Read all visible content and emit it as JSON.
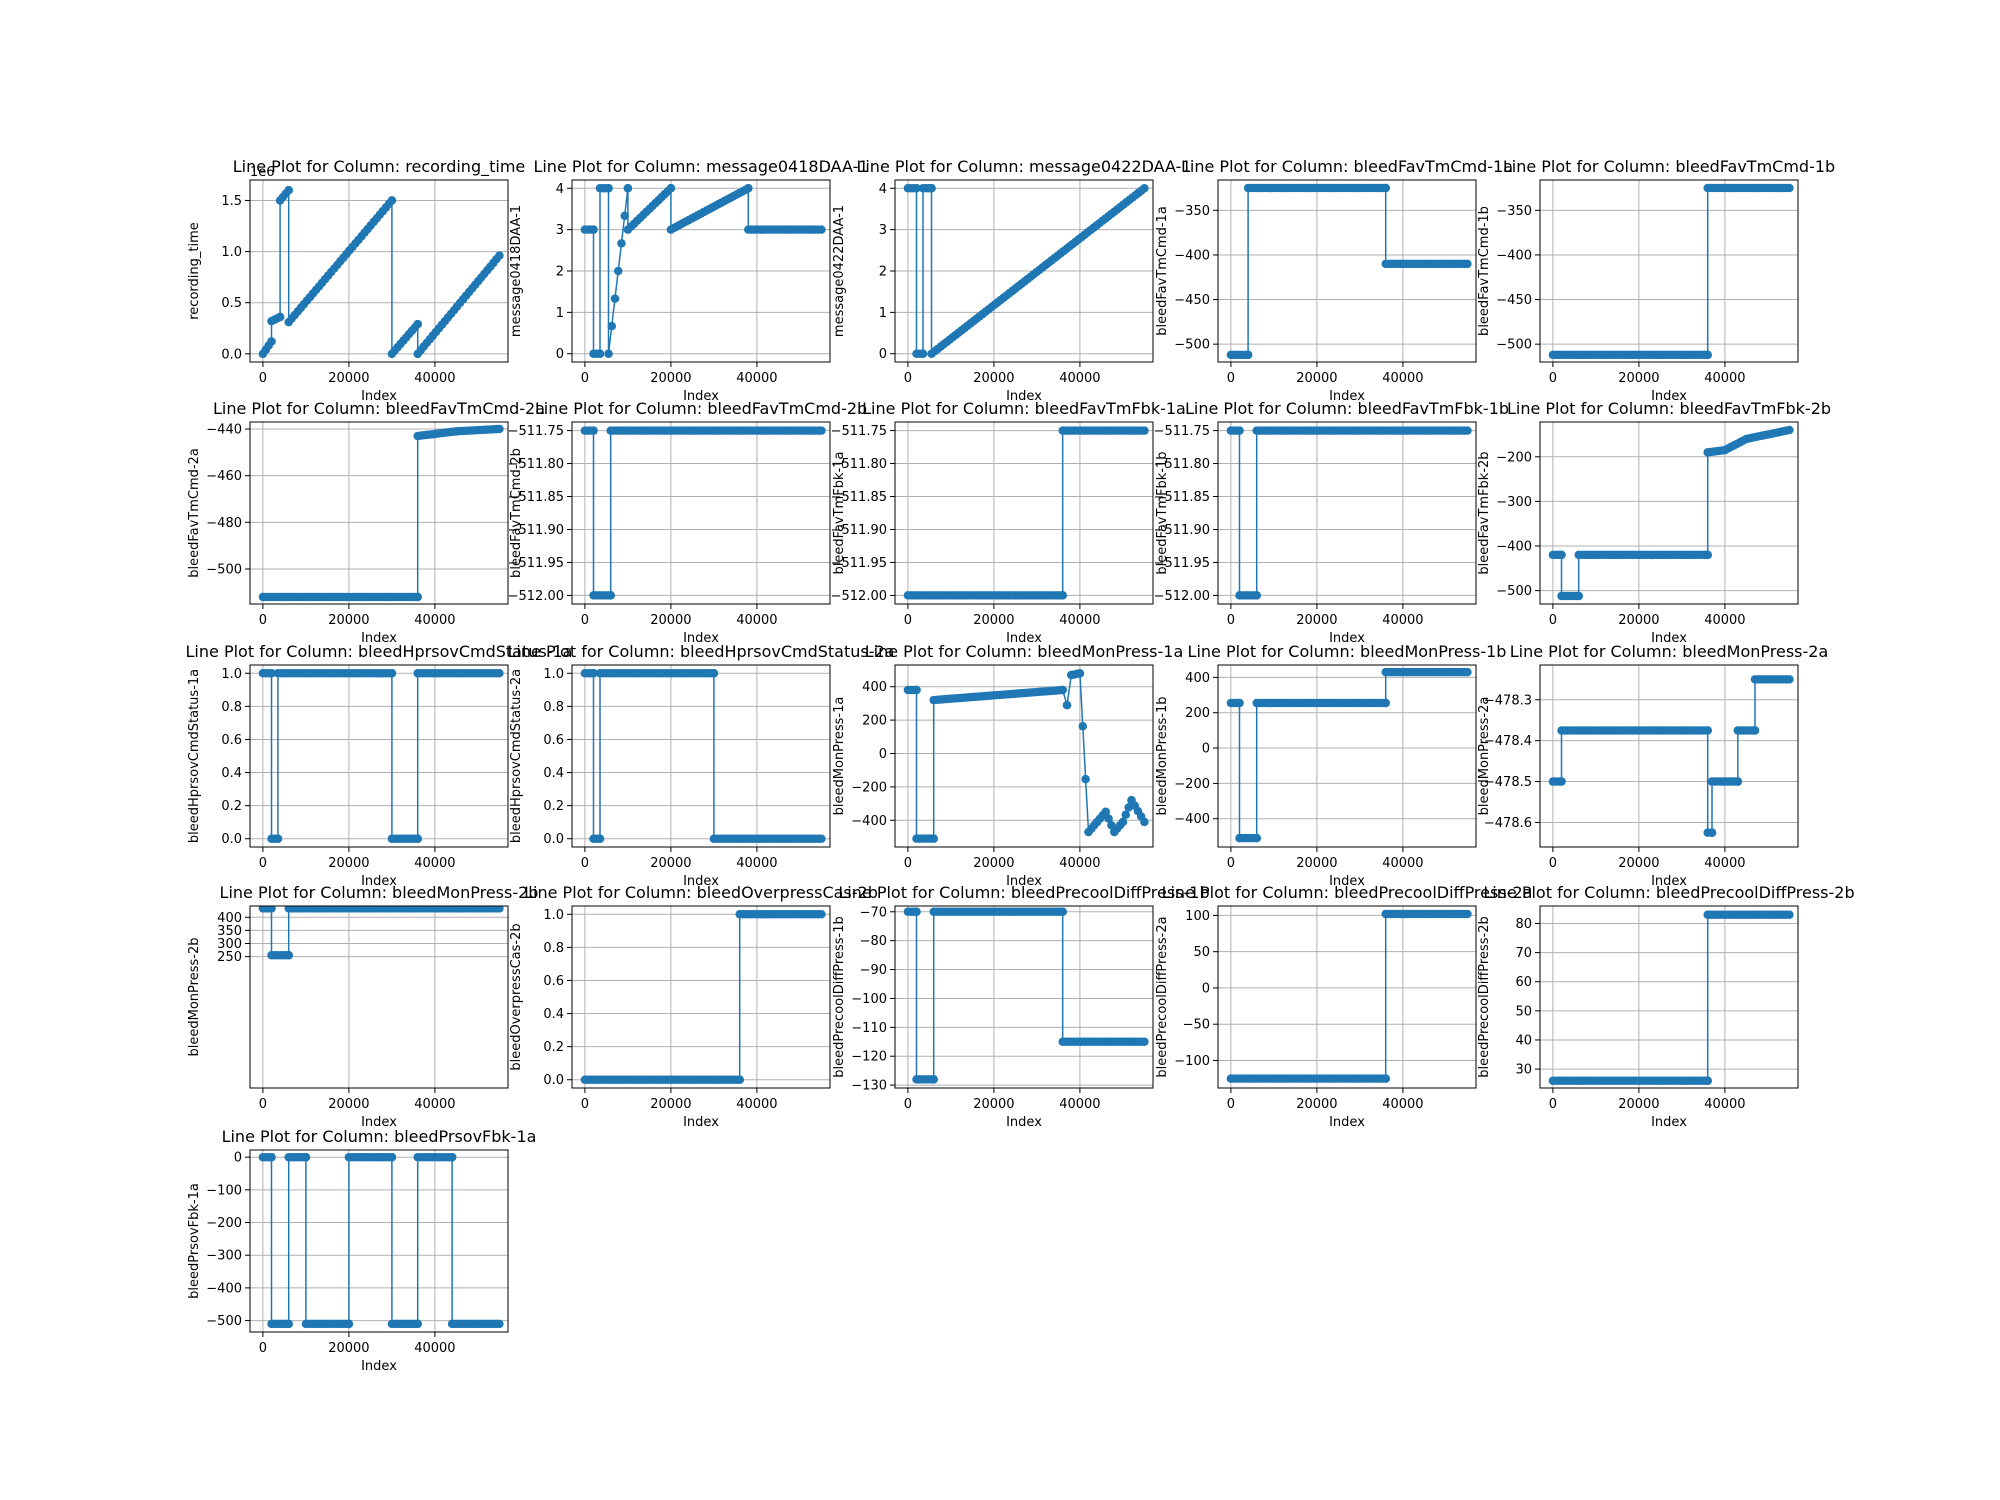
{
  "figure": {
    "x_tick_labels": [
      "0",
      "20000",
      "40000"
    ],
    "x_tick_values": [
      0,
      20000,
      40000
    ],
    "xlabel": "Index",
    "series_color": "#1f77b4",
    "grid_color": "#b0b0b0"
  },
  "chart_data": [
    {
      "type": "line",
      "title": "Line Plot for Column: recording_time",
      "xlabel": "Index",
      "ylabel": "recording_time",
      "xlim": [
        -3000,
        57000
      ],
      "ylim": [
        -80000,
        1700000
      ],
      "offset_label": "1e6",
      "yticks": [
        0,
        500000,
        1000000,
        1500000
      ],
      "ytick_labels": [
        "0.0",
        "0.5",
        "1.0",
        "1.5"
      ],
      "grid": true,
      "x": [
        0,
        2000,
        2000,
        4000,
        4000,
        6000,
        6000,
        30000,
        30000,
        36000,
        36000,
        55000
      ],
      "y": [
        0,
        120000,
        320000,
        360000,
        1500000,
        1600000,
        310000,
        1500000,
        0,
        290000,
        0,
        960000
      ]
    },
    {
      "type": "line",
      "title": "Line Plot for Column: message0418DAA-1",
      "xlabel": "Index",
      "ylabel": "message0418DAA-1",
      "xlim": [
        -3000,
        57000
      ],
      "ylim": [
        -0.2,
        4.2
      ],
      "yticks": [
        0,
        1,
        2,
        3,
        4
      ],
      "ytick_labels": [
        "0",
        "1",
        "2",
        "3",
        "4"
      ],
      "grid": true,
      "x": [
        0,
        2000,
        2000,
        3500,
        3500,
        5500,
        5500,
        10000,
        10000,
        20000,
        20000,
        38000,
        38000,
        55000
      ],
      "y": [
        3,
        3,
        0,
        0,
        4,
        4,
        0,
        4,
        3,
        4,
        3,
        4,
        3,
        3
      ]
    },
    {
      "type": "line",
      "title": "Line Plot for Column: message0422DAA-1",
      "xlabel": "Index",
      "ylabel": "message0422DAA-1",
      "xlim": [
        -3000,
        57000
      ],
      "ylim": [
        -0.2,
        4.2
      ],
      "yticks": [
        0,
        1,
        2,
        3,
        4
      ],
      "ytick_labels": [
        "0",
        "1",
        "2",
        "3",
        "4"
      ],
      "grid": true,
      "x": [
        0,
        2000,
        2000,
        3500,
        3500,
        5500,
        5500,
        55000
      ],
      "y": [
        4,
        4,
        0,
        0,
        4,
        4,
        0,
        4
      ]
    },
    {
      "type": "line",
      "title": "Line Plot for Column: bleedFavTmCmd-1a",
      "xlabel": "Index",
      "ylabel": "bleedFavTmCmd-1a",
      "xlim": [
        -3000,
        57000
      ],
      "ylim": [
        -520,
        -316
      ],
      "yticks": [
        -500,
        -450,
        -400,
        -350
      ],
      "ytick_labels": [
        "−500",
        "−450",
        "−400",
        "−350"
      ],
      "grid": true,
      "x": [
        0,
        4000,
        4000,
        36000,
        36000,
        55000
      ],
      "y": [
        -512,
        -512,
        -325,
        -325,
        -410,
        -410
      ]
    },
    {
      "type": "line",
      "title": "Line Plot for Column: bleedFavTmCmd-1b",
      "xlabel": "Index",
      "ylabel": "bleedFavTmCmd-1b",
      "xlim": [
        -3000,
        57000
      ],
      "ylim": [
        -520,
        -316
      ],
      "yticks": [
        -500,
        -450,
        -400,
        -350
      ],
      "ytick_labels": [
        "−500",
        "−450",
        "−400",
        "−350"
      ],
      "grid": true,
      "x": [
        0,
        36000,
        36000,
        55000
      ],
      "y": [
        -512,
        -512,
        -325,
        -325
      ]
    },
    {
      "type": "line",
      "title": "Line Plot for Column: bleedFavTmCmd-2a",
      "xlabel": "Index",
      "ylabel": "bleedFavTmCmd-2a",
      "xlim": [
        -3000,
        57000
      ],
      "ylim": [
        -515,
        -437
      ],
      "yticks": [
        -500,
        -480,
        -460,
        -440
      ],
      "ytick_labels": [
        "−500",
        "−480",
        "−460",
        "−440"
      ],
      "grid": true,
      "x": [
        0,
        36000,
        36000,
        45000,
        55000
      ],
      "y": [
        -512,
        -512,
        -443,
        -441,
        -440
      ]
    },
    {
      "type": "line",
      "title": "Line Plot for Column: bleedFavTmCmd-2b",
      "xlabel": "Index",
      "ylabel": "bleedFavTmCmd-2b",
      "xlim": [
        -3000,
        57000
      ],
      "ylim": [
        -512.013,
        -511.737
      ],
      "yticks": [
        -512.0,
        -511.95,
        -511.9,
        -511.85,
        -511.8,
        -511.75
      ],
      "ytick_labels": [
        "−512.00",
        "−511.95",
        "−511.90",
        "−511.85",
        "−511.80",
        "−511.75"
      ],
      "grid": true,
      "x": [
        0,
        2000,
        2000,
        6000,
        6000,
        55000
      ],
      "y": [
        -511.75,
        -511.75,
        -512.0,
        -512.0,
        -511.75,
        -511.75
      ]
    },
    {
      "type": "line",
      "title": "Line Plot for Column: bleedFavTmFbk-1a",
      "xlabel": "Index",
      "ylabel": "bleedFavTmFbk-1a",
      "xlim": [
        -3000,
        57000
      ],
      "ylim": [
        -512.013,
        -511.737
      ],
      "yticks": [
        -512.0,
        -511.95,
        -511.9,
        -511.85,
        -511.8,
        -511.75
      ],
      "ytick_labels": [
        "−512.00",
        "−511.95",
        "−511.90",
        "−511.85",
        "−511.80",
        "−511.75"
      ],
      "grid": true,
      "x": [
        0,
        36000,
        36000,
        55000
      ],
      "y": [
        -512.0,
        -512.0,
        -511.75,
        -511.75
      ]
    },
    {
      "type": "line",
      "title": "Line Plot for Column: bleedFavTmFbk-1b",
      "xlabel": "Index",
      "ylabel": "bleedFavTmFbk-1b",
      "xlim": [
        -3000,
        57000
      ],
      "ylim": [
        -512.013,
        -511.737
      ],
      "yticks": [
        -512.0,
        -511.95,
        -511.9,
        -511.85,
        -511.8,
        -511.75
      ],
      "ytick_labels": [
        "−512.00",
        "−511.95",
        "−511.90",
        "−511.85",
        "−511.80",
        "−511.75"
      ],
      "grid": true,
      "x": [
        0,
        2000,
        2000,
        6000,
        6000,
        55000
      ],
      "y": [
        -511.75,
        -511.75,
        -512.0,
        -512.0,
        -511.75,
        -511.75
      ]
    },
    {
      "type": "line",
      "title": "Line Plot for Column: bleedFavTmFbk-2b",
      "xlabel": "Index",
      "ylabel": "bleedFavTmFbk-2b",
      "xlim": [
        -3000,
        57000
      ],
      "ylim": [
        -530,
        -122
      ],
      "yticks": [
        -500,
        -400,
        -300,
        -200
      ],
      "ytick_labels": [
        "−500",
        "−400",
        "−300",
        "−200"
      ],
      "grid": true,
      "x": [
        0,
        2000,
        2000,
        6000,
        6000,
        36000,
        36000,
        40000,
        45000,
        55000
      ],
      "y": [
        -420,
        -420,
        -512,
        -512,
        -420,
        -420,
        -190,
        -185,
        -160,
        -140
      ]
    },
    {
      "type": "line",
      "title": "Line Plot for Column: bleedHprsovCmdStatus-1a",
      "xlabel": "Index",
      "ylabel": "bleedHprsovCmdStatus-1a",
      "xlim": [
        -3000,
        57000
      ],
      "ylim": [
        -0.05,
        1.05
      ],
      "yticks": [
        0,
        0.2,
        0.4,
        0.6,
        0.8,
        1.0
      ],
      "ytick_labels": [
        "0.0",
        "0.2",
        "0.4",
        "0.6",
        "0.8",
        "1.0"
      ],
      "grid": true,
      "x": [
        0,
        2000,
        2000,
        3500,
        3500,
        30000,
        30000,
        36000,
        36000,
        55000
      ],
      "y": [
        1,
        1,
        0,
        0,
        1,
        1,
        0,
        0,
        1,
        1
      ]
    },
    {
      "type": "line",
      "title": "Line Plot for Column: bleedHprsovCmdStatus-2a",
      "xlabel": "Index",
      "ylabel": "bleedHprsovCmdStatus-2a",
      "xlim": [
        -3000,
        57000
      ],
      "ylim": [
        -0.05,
        1.05
      ],
      "yticks": [
        0,
        0.2,
        0.4,
        0.6,
        0.8,
        1.0
      ],
      "ytick_labels": [
        "0.0",
        "0.2",
        "0.4",
        "0.6",
        "0.8",
        "1.0"
      ],
      "grid": true,
      "x": [
        0,
        2000,
        2000,
        3500,
        3500,
        30000,
        30000,
        55000
      ],
      "y": [
        1,
        1,
        0,
        0,
        1,
        1,
        0,
        0
      ]
    },
    {
      "type": "line",
      "title": "Line Plot for Column: bleedMonPress-1a",
      "xlabel": "Index",
      "ylabel": "bleedMonPress-1a",
      "xlim": [
        -3000,
        57000
      ],
      "ylim": [
        -560,
        530
      ],
      "yticks": [
        -400,
        -200,
        0,
        200,
        400
      ],
      "ytick_labels": [
        "−400",
        "−200",
        "0",
        "200",
        "400"
      ],
      "grid": true,
      "x": [
        0,
        2000,
        2000,
        6000,
        6000,
        36000,
        37000,
        38000,
        40000,
        42000,
        44000,
        46000,
        48000,
        50000,
        52000,
        55000
      ],
      "y": [
        380,
        380,
        -510,
        -510,
        320,
        380,
        290,
        470,
        480,
        -470,
        -410,
        -350,
        -470,
        -410,
        -280,
        -410
      ]
    },
    {
      "type": "line",
      "title": "Line Plot for Column: bleedMonPress-1b",
      "xlabel": "Index",
      "ylabel": "bleedMonPress-1b",
      "xlim": [
        -3000,
        57000
      ],
      "ylim": [
        -560,
        470
      ],
      "yticks": [
        -400,
        -200,
        0,
        200,
        400
      ],
      "ytick_labels": [
        "−400",
        "−200",
        "0",
        "200",
        "400"
      ],
      "grid": true,
      "x": [
        0,
        2000,
        2000,
        6000,
        6000,
        36000,
        36000,
        55000
      ],
      "y": [
        255,
        255,
        -510,
        -510,
        255,
        255,
        430,
        430
      ]
    },
    {
      "type": "line",
      "title": "Line Plot for Column: bleedMonPress-2a",
      "xlabel": "Index",
      "ylabel": "bleedMonPress-2a",
      "xlim": [
        -3000,
        57000
      ],
      "ylim": [
        -478.66,
        -478.215
      ],
      "yticks": [
        -478.6,
        -478.5,
        -478.4,
        -478.3
      ],
      "ytick_labels": [
        "−478.6",
        "−478.5",
        "−478.4",
        "−478.3"
      ],
      "grid": true,
      "x": [
        0,
        2000,
        2000,
        36000,
        36000,
        37000,
        37000,
        43000,
        43000,
        47000,
        47000,
        55000
      ],
      "y": [
        -478.5,
        -478.5,
        -478.375,
        -478.375,
        -478.625,
        -478.625,
        -478.5,
        -478.5,
        -478.375,
        -478.375,
        -478.25,
        -478.25
      ]
    },
    {
      "type": "line",
      "title": "Line Plot for Column: bleedMonPress-2b",
      "xlabel": "Index",
      "ylabel": "bleedMonPress-2b",
      "xlim": [
        -3000,
        57000
      ],
      "ylim": [
        -251,
        443
      ],
      "yticks": [
        250,
        300,
        350,
        400
      ],
      "ytick_labels": [
        "250",
        "300",
        "350",
        "400"
      ],
      "grid": true,
      "x": [
        0,
        2000,
        2000,
        6000,
        6000,
        55000
      ],
      "y": [
        434,
        434,
        255,
        255,
        434,
        434
      ]
    },
    {
      "type": "line",
      "title": "Line Plot for Column: bleedOverpressCas-2b",
      "xlabel": "Index",
      "ylabel": "bleedOverpressCas-2b",
      "xlim": [
        -3000,
        57000
      ],
      "ylim": [
        -0.05,
        1.05
      ],
      "yticks": [
        0,
        0.2,
        0.4,
        0.6,
        0.8,
        1.0
      ],
      "ytick_labels": [
        "0.0",
        "0.2",
        "0.4",
        "0.6",
        "0.8",
        "1.0"
      ],
      "grid": true,
      "x": [
        0,
        36000,
        36000,
        55000
      ],
      "y": [
        0,
        0,
        1,
        1
      ]
    },
    {
      "type": "line",
      "title": "Line Plot for Column: bleedPrecoolDiffPress-1b",
      "xlabel": "Index",
      "ylabel": "bleedPrecoolDiffPress-1b",
      "xlim": [
        -3000,
        57000
      ],
      "ylim": [
        -131,
        -68
      ],
      "yticks": [
        -130,
        -120,
        -110,
        -100,
        -90,
        -80,
        -70
      ],
      "ytick_labels": [
        "−130",
        "−120",
        "−110",
        "−100",
        "−90",
        "−80",
        "−70"
      ],
      "grid": true,
      "x": [
        0,
        2000,
        2000,
        6000,
        6000,
        36000,
        36000,
        55000
      ],
      "y": [
        -70,
        -70,
        -128,
        -128,
        -70,
        -70,
        -115,
        -115
      ]
    },
    {
      "type": "line",
      "title": "Line Plot for Column: bleedPrecoolDiffPress-2a",
      "xlabel": "Index",
      "ylabel": "bleedPrecoolDiffPress-2a",
      "xlim": [
        -3000,
        57000
      ],
      "ylim": [
        -138,
        113
      ],
      "yticks": [
        -100,
        -50,
        0,
        50,
        100
      ],
      "ytick_labels": [
        "−100",
        "−50",
        "0",
        "50",
        "100"
      ],
      "grid": true,
      "x": [
        0,
        36000,
        36000,
        55000
      ],
      "y": [
        -125,
        -125,
        102,
        102
      ]
    },
    {
      "type": "line",
      "title": "Line Plot for Column: bleedPrecoolDiffPress-2b",
      "xlabel": "Index",
      "ylabel": "bleedPrecoolDiffPress-2b",
      "xlim": [
        -3000,
        57000
      ],
      "ylim": [
        23.5,
        86
      ],
      "yticks": [
        30,
        40,
        50,
        60,
        70,
        80
      ],
      "ytick_labels": [
        "30",
        "40",
        "50",
        "60",
        "70",
        "80"
      ],
      "grid": true,
      "x": [
        0,
        36000,
        36000,
        55000
      ],
      "y": [
        26,
        26,
        83,
        83
      ]
    },
    {
      "type": "line",
      "title": "Line Plot for Column: bleedPrsovFbk-1a",
      "xlabel": "Index",
      "ylabel": "bleedPrsovFbk-1a",
      "xlim": [
        -3000,
        57000
      ],
      "ylim": [
        -535,
        22
      ],
      "yticks": [
        -500,
        -400,
        -300,
        -200,
        -100,
        0
      ],
      "ytick_labels": [
        "−500",
        "−400",
        "−300",
        "−200",
        "−100",
        "0"
      ],
      "grid": true,
      "x": [
        0,
        2000,
        2000,
        6000,
        6000,
        10000,
        10000,
        20000,
        20000,
        30000,
        30000,
        36000,
        36000,
        44000,
        44000,
        55000
      ],
      "y": [
        0,
        0,
        -510,
        -510,
        0,
        0,
        -510,
        -510,
        0,
        0,
        -510,
        -510,
        0,
        0,
        -510,
        -510
      ]
    }
  ]
}
